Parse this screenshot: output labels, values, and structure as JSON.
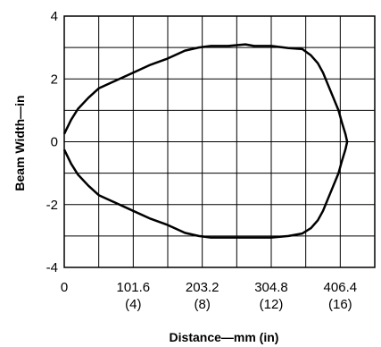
{
  "chart_data": {
    "type": "line",
    "title": "",
    "xlabel": "Distance—mm (in)",
    "ylabel": "Beam Width—in",
    "x_unit": "in",
    "xlim": [
      0,
      18
    ],
    "ylim": [
      -4,
      4
    ],
    "grid": true,
    "x_ticks": [
      {
        "value": 0,
        "label": "0",
        "sublabel": ""
      },
      {
        "value": 4,
        "label": "101.6",
        "sublabel": "(4)"
      },
      {
        "value": 8,
        "label": "203.2",
        "sublabel": "(8)"
      },
      {
        "value": 12,
        "label": "304.8",
        "sublabel": "(12)"
      },
      {
        "value": 16,
        "label": "406.4",
        "sublabel": "(16)"
      }
    ],
    "y_ticks": [
      {
        "value": 4,
        "label": "4"
      },
      {
        "value": 2,
        "label": "2"
      },
      {
        "value": 0,
        "label": "0"
      },
      {
        "value": -2,
        "label": "-2"
      },
      {
        "value": -4,
        "label": "-4"
      }
    ],
    "series": [
      {
        "color": "#000000",
        "x": [
          0,
          0.4,
          0.8,
          1.4,
          2.0,
          3.0,
          4.0,
          5.0,
          6.0,
          7.0,
          7.8,
          8.5,
          9.5,
          10.5,
          11.0,
          12.0,
          13.0,
          13.8,
          14.3,
          14.7,
          15.0,
          15.3,
          15.6,
          15.9,
          16.1,
          16.3,
          16.4,
          16.3,
          16.1,
          15.9,
          15.6,
          15.3,
          15.0,
          14.7,
          14.3,
          13.8,
          13.0,
          12.0,
          10.5,
          9.5,
          8.5,
          7.8,
          7.0,
          6.0,
          5.0,
          4.0,
          3.0,
          2.0,
          1.4,
          0.8,
          0.4,
          0
        ],
        "y": [
          0.25,
          0.7,
          1.05,
          1.4,
          1.7,
          1.95,
          2.2,
          2.45,
          2.65,
          2.9,
          3.0,
          3.05,
          3.05,
          3.1,
          3.05,
          3.05,
          2.98,
          2.95,
          2.75,
          2.5,
          2.2,
          1.8,
          1.4,
          1.0,
          0.6,
          0.25,
          0.0,
          -0.25,
          -0.6,
          -1.0,
          -1.4,
          -1.8,
          -2.2,
          -2.5,
          -2.75,
          -2.92,
          -3.0,
          -3.05,
          -3.05,
          -3.05,
          -3.05,
          -3.0,
          -2.9,
          -2.65,
          -2.45,
          -2.2,
          -1.95,
          -1.7,
          -1.4,
          -1.05,
          -0.7,
          -0.25
        ]
      }
    ]
  }
}
